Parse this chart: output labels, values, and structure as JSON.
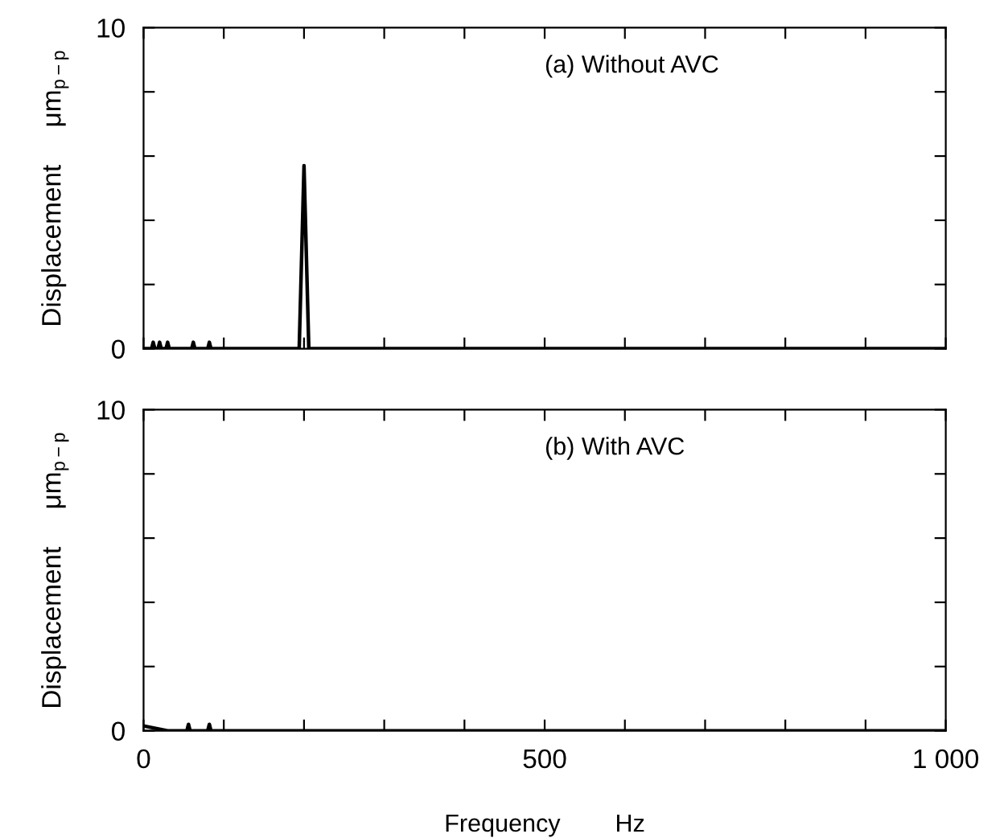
{
  "chart_data": [
    {
      "type": "line",
      "annotations": [
        "(a) Without AVC"
      ],
      "ylabel": "Displacement     μm$_{p−p}$",
      "tick_labels": "y",
      "grid": false,
      "marker": "none",
      "line_style": "solid",
      "xlim": [
        0,
        1000
      ],
      "ylim": [
        0,
        10
      ],
      "xticks": [
        {
          "value": 0,
          "label": null
        },
        {
          "value": 100,
          "label": null
        },
        {
          "value": 200,
          "label": null
        },
        {
          "value": 300,
          "label": null
        },
        {
          "value": 400,
          "label": null
        },
        {
          "value": 500,
          "label": null
        },
        {
          "value": 600,
          "label": null
        },
        {
          "value": 700,
          "label": null
        },
        {
          "value": 800,
          "label": null
        },
        {
          "value": 900,
          "label": null
        },
        {
          "value": 1000,
          "label": null
        }
      ],
      "yticks": [
        0,
        {
          "value": 2,
          "label": null
        },
        {
          "value": 4,
          "label": null
        },
        {
          "value": 6,
          "label": null
        },
        {
          "value": 8,
          "label": null
        },
        10
      ],
      "series": [
        {
          "color": "#000000",
          "x": [
            0,
            10,
            12,
            14,
            18,
            20,
            22,
            28,
            30,
            32,
            60,
            62,
            64,
            80,
            82,
            84,
            194,
            200,
            206,
            1000
          ],
          "values": [
            0,
            0,
            0.2,
            0,
            0,
            0.2,
            0,
            0,
            0.2,
            0,
            0,
            0.2,
            0,
            0,
            0.2,
            0,
            0,
            5.7,
            0,
            0
          ]
        }
      ]
    },
    {
      "type": "line",
      "annotations": [
        "(b) With AVC"
      ],
      "ylabel": "Displacement     μm$_{p−p}$",
      "xlabel": "Frequency        Hz",
      "grid": false,
      "marker": "none",
      "line_style": "solid",
      "xlim": [
        0,
        1000
      ],
      "ylim": [
        0,
        10
      ],
      "xticks": [
        0,
        {
          "value": 100,
          "label": null
        },
        {
          "value": 200,
          "label": null
        },
        {
          "value": 300,
          "label": null
        },
        {
          "value": 400,
          "label": null
        },
        500,
        {
          "value": 600,
          "label": null
        },
        {
          "value": 700,
          "label": null
        },
        {
          "value": 800,
          "label": null
        },
        {
          "value": 900,
          "label": null
        },
        {
          "value": 1000,
          "label": "1 000"
        }
      ],
      "yticks": [
        0,
        {
          "value": 2,
          "label": null
        },
        {
          "value": 4,
          "label": null
        },
        {
          "value": 6,
          "label": null
        },
        {
          "value": 8,
          "label": null
        },
        10
      ],
      "series": [
        {
          "color": "#000000",
          "x": [
            0,
            30,
            54,
            56,
            58,
            80,
            82,
            84,
            1000
          ],
          "values": [
            0.15,
            0,
            0,
            0.2,
            0,
            0,
            0.2,
            0,
            0
          ]
        }
      ]
    }
  ]
}
